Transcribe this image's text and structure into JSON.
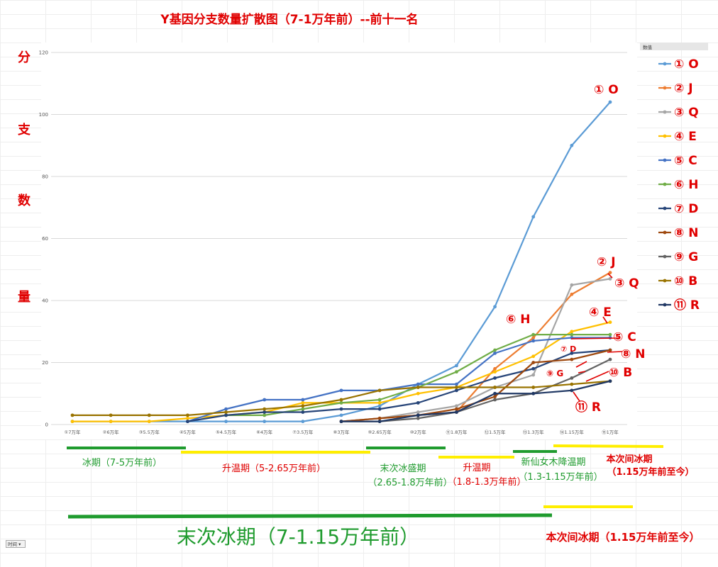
{
  "chart_data": {
    "type": "line",
    "title": "Y基因分支数量扩散图（7-1万年前）--前十一名",
    "ylabel_chars": [
      "分",
      "支",
      "数",
      "量"
    ],
    "ylim": [
      0,
      120
    ],
    "yticks": [
      0,
      20,
      40,
      60,
      80,
      100,
      120
    ],
    "legend_title": "数值",
    "categories": [
      "①7万年",
      "②6万年",
      "③5.5万年",
      "④5万年",
      "⑤4.5万年",
      "⑥4万年",
      "⑦3.5万年",
      "⑧3万年",
      "⑨2.65万年",
      "⑩2万年",
      "⑪1.8万年",
      "⑫1.5万年",
      "⑬1.3万年",
      "⑭1.15万年",
      "⑮1万年"
    ],
    "series": [
      {
        "name": "① O",
        "color": "#5b9bd5",
        "values": [
          1,
          1,
          1,
          1,
          1,
          1,
          1,
          3,
          6,
          13,
          19,
          38,
          67,
          90,
          104
        ]
      },
      {
        "name": "② J",
        "color": "#ed7d31",
        "values": [
          null,
          null,
          null,
          null,
          null,
          null,
          null,
          1,
          2,
          3,
          4,
          18,
          28,
          42,
          49
        ]
      },
      {
        "name": "③ Q",
        "color": "#a5a5a5",
        "values": [
          null,
          null,
          null,
          null,
          null,
          null,
          null,
          1,
          2,
          4,
          6,
          12,
          16,
          45,
          47
        ]
      },
      {
        "name": "④ E",
        "color": "#ffc000",
        "values": [
          1,
          1,
          1,
          2,
          3,
          4,
          7,
          7,
          7,
          10,
          12,
          17,
          22,
          30,
          33
        ]
      },
      {
        "name": "⑤ C",
        "color": "#4472c4",
        "values": [
          null,
          null,
          null,
          1,
          5,
          8,
          8,
          11,
          11,
          13,
          13,
          23,
          27,
          28,
          28
        ]
      },
      {
        "name": "⑥ H",
        "color": "#70ad47",
        "values": [
          null,
          null,
          null,
          null,
          3,
          3,
          5,
          7,
          8,
          12,
          17,
          24,
          29,
          29,
          29
        ]
      },
      {
        "name": "⑦ D",
        "color": "#264478",
        "values": [
          null,
          null,
          null,
          1,
          3,
          4,
          4,
          5,
          5,
          7,
          11,
          15,
          18,
          23,
          24
        ]
      },
      {
        "name": "⑧ N",
        "color": "#9e480e",
        "values": [
          null,
          null,
          null,
          null,
          null,
          null,
          null,
          1,
          2,
          3,
          5,
          9,
          20,
          21,
          24
        ]
      },
      {
        "name": "⑨ G",
        "color": "#636363",
        "values": [
          null,
          null,
          null,
          null,
          null,
          null,
          null,
          1,
          1,
          2,
          4,
          8,
          10,
          15,
          21
        ]
      },
      {
        "name": "⑩ B",
        "color": "#997300",
        "values": [
          3,
          3,
          3,
          3,
          4,
          5,
          6,
          8,
          11,
          12,
          12,
          12,
          12,
          13,
          14
        ]
      },
      {
        "name": "⑪ R",
        "color": "#203864",
        "values": [
          null,
          null,
          null,
          null,
          null,
          null,
          null,
          1,
          1,
          3,
          4,
          10,
          10,
          11,
          14
        ]
      }
    ],
    "callouts": [
      "① O",
      "② J",
      "③ Q",
      "④ E",
      "⑤ C",
      "⑥ H",
      "⑦ D",
      "⑧ N",
      "⑨ G",
      "⑩ B",
      "⑪ R"
    ],
    "periods": [
      {
        "label": "冰期（7-5万年前）",
        "color": "#1f9b2e"
      },
      {
        "label": "升温期（5-2.65万年前）",
        "color": "#e00000"
      },
      {
        "label_line1": "末次冰盛期",
        "label_line2": "（2.65-1.8万年前）",
        "color": "#1f9b2e"
      },
      {
        "label_line1": "升温期",
        "label_line2": "（1.8-1.3万年前）",
        "color": "#e00000"
      },
      {
        "label_line1": "新仙女木降温期",
        "label_line2": "（1.3-1.15万年前）",
        "color": "#1f9b2e"
      },
      {
        "label_line1": "本次间冰期",
        "label_line2": "（1.15万年前至今）",
        "color": "#e00000"
      }
    ],
    "big_periods": [
      {
        "label": "末次冰期（7-1.15万年前）",
        "color": "#1f9b2e"
      },
      {
        "label": "本次间冰期（1.15万年前至今）",
        "color": "#e00000"
      }
    ]
  },
  "filter": {
    "label": "时间"
  }
}
